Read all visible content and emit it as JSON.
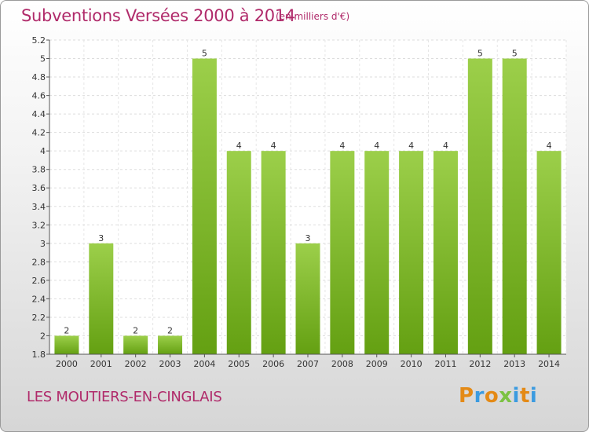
{
  "header": {
    "title": "Subventions Versées 2000 à 2014",
    "unit": "(en milliers d'€)"
  },
  "footer": {
    "commune": "LES MOUTIERS-EN-CINGLAIS",
    "logo": "Proxiti"
  },
  "colors": {
    "title": "#b02a6a",
    "bar_light": "#9ccf4a",
    "bar_dark": "#64a012"
  },
  "chart_data": {
    "type": "bar",
    "categories": [
      "2000",
      "2001",
      "2002",
      "2003",
      "2004",
      "2005",
      "2006",
      "2007",
      "2008",
      "2009",
      "2010",
      "2011",
      "2012",
      "2013",
      "2014"
    ],
    "values": [
      2,
      3,
      2,
      2,
      5,
      4,
      4,
      3,
      4,
      4,
      4,
      4,
      5,
      5,
      4
    ],
    "data_labels": [
      "2",
      "3",
      "2",
      "2",
      "5",
      "4",
      "4",
      "3",
      "4",
      "4",
      "4",
      "4",
      "5",
      "5",
      "4"
    ],
    "ylim": [
      1.8,
      5.2
    ],
    "yticks": [
      "1.8",
      "2",
      "2.2",
      "2.4",
      "2.6",
      "2.8",
      "3",
      "3.2",
      "3.4",
      "3.6",
      "3.8",
      "4",
      "4.2",
      "4.4",
      "4.6",
      "4.8",
      "5",
      "5.2"
    ],
    "grid": true,
    "xlabel": "",
    "ylabel": ""
  }
}
